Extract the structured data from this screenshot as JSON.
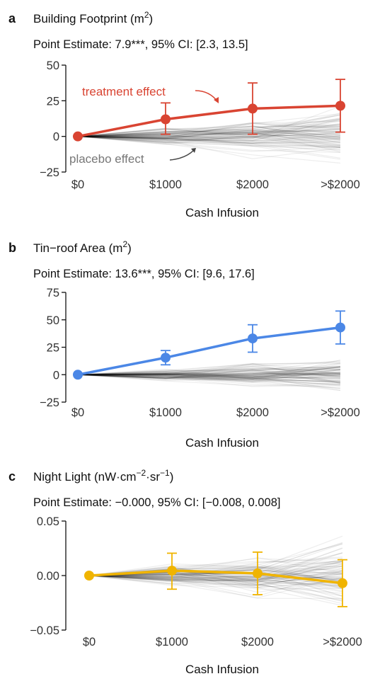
{
  "chart_data": [
    {
      "type": "line",
      "panel_letter": "a",
      "title": "Building Footprint (m",
      "title_sup": "2",
      "title_suffix": ")",
      "subtitle": "Point Estimate: 7.9***, 95% CI: [2.3, 13.5]",
      "xlabel": "Cash Infusion",
      "categories": [
        "$0",
        "$1000",
        "$2000",
        ">$2000"
      ],
      "yticks": [
        "50",
        "25",
        "0",
        "−25"
      ],
      "ytick_values": [
        50,
        25,
        0,
        -25
      ],
      "ylim": [
        -25,
        50
      ],
      "color": "#d94432",
      "series": [
        {
          "values": [
            0,
            12,
            19.5,
            21.5
          ],
          "ci_low": [
            null,
            1.5,
            1.5,
            3
          ],
          "ci_high": [
            null,
            23.5,
            37.5,
            40
          ]
        }
      ],
      "annotations": [
        {
          "text": "treatment effect",
          "color": "#d94432"
        },
        {
          "text": "placebo effect",
          "color": "#777777"
        }
      ],
      "placebo": {
        "spread": 28,
        "seed": 11
      }
    },
    {
      "type": "line",
      "panel_letter": "b",
      "title": "Tin−roof Area (m",
      "title_sup": "2",
      "title_suffix": ")",
      "subtitle": "Point Estimate: 13.6***, 95% CI: [9.6, 17.6]",
      "xlabel": "Cash Infusion",
      "categories": [
        "$0",
        "$1000",
        "$2000",
        ">$2000"
      ],
      "yticks": [
        "75",
        "50",
        "25",
        "0",
        "−25"
      ],
      "ytick_values": [
        75,
        50,
        25,
        0,
        -25
      ],
      "ylim": [
        -25,
        75
      ],
      "color": "#4b87e6",
      "series": [
        {
          "values": [
            0,
            15.5,
            33,
            43
          ],
          "ci_low": [
            null,
            9,
            20.5,
            28
          ],
          "ci_high": [
            null,
            22,
            45.5,
            58
          ]
        }
      ],
      "annotations": [],
      "placebo": {
        "spread": 24,
        "seed": 23
      }
    },
    {
      "type": "line",
      "panel_letter": "c",
      "title": "Night Light (nW·cm",
      "title_sup": "−2",
      "title_mid": "·sr",
      "title_sup2": "−1",
      "title_suffix": ")",
      "subtitle": "Point Estimate: −0.000, 95% CI: [−0.008, 0.008]",
      "xlabel": "Cash Infusion",
      "categories": [
        "$0",
        "$1000",
        "$2000",
        ">$2000"
      ],
      "yticks": [
        "0.05",
        "0.00",
        "−0.05"
      ],
      "ytick_values": [
        0.05,
        0,
        -0.05
      ],
      "ylim": [
        -0.05,
        0.05
      ],
      "color": "#f0b400",
      "series": [
        {
          "values": [
            0,
            0.0045,
            0.002,
            -0.007
          ],
          "ci_low": [
            null,
            -0.0125,
            -0.0175,
            -0.0285
          ],
          "ci_high": [
            null,
            0.0205,
            0.0215,
            0.0145
          ]
        }
      ],
      "annotations": [],
      "placebo": {
        "spread": 0.045,
        "seed": 37
      }
    }
  ]
}
